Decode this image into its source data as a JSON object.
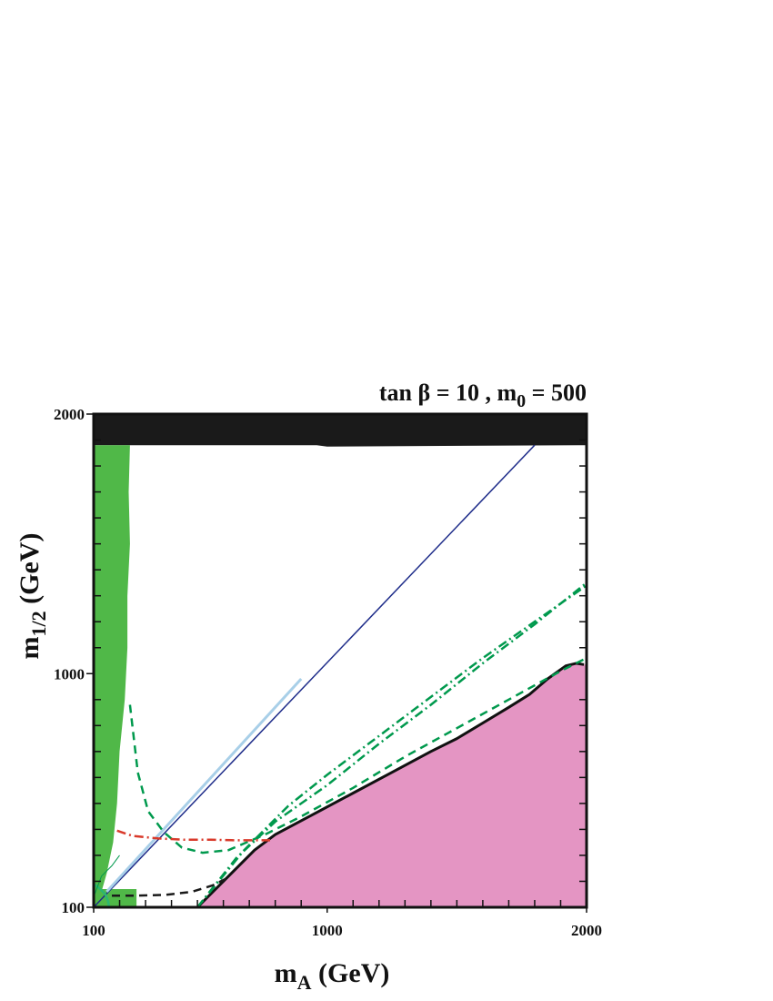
{
  "chart_data": {
    "type": "line",
    "title": "tan β = 10 , m",
    "title_sub": "0",
    "title_suffix": " = 500",
    "xlabel": "m",
    "xlabel_sub": "A",
    "xlabel_suffix": " (GeV)",
    "ylabel": "m",
    "ylabel_sub": "1/2",
    "ylabel_suffix": " (GeV)",
    "xlim": [
      100,
      2000
    ],
    "ylim": [
      100,
      2000
    ],
    "x_tick_labels": [
      {
        "value": 100,
        "label": "100"
      },
      {
        "value": 1000,
        "label": "1000"
      },
      {
        "value": 2000,
        "label": "2000"
      }
    ],
    "y_tick_labels": [
      {
        "value": 100,
        "label": "100"
      },
      {
        "value": 1000,
        "label": "1000"
      },
      {
        "value": 2000,
        "label": "2000"
      }
    ],
    "x_minor_ticks": [
      200,
      300,
      400,
      500,
      600,
      700,
      800,
      900,
      1100,
      1200,
      1300,
      1400,
      1500,
      1600,
      1700,
      1800,
      1900
    ],
    "y_minor_ticks": [
      200,
      300,
      400,
      500,
      600,
      700,
      800,
      900,
      1100,
      1200,
      1300,
      1400,
      1500,
      1600,
      1700,
      1800,
      1900
    ],
    "grid": false,
    "regions": [
      {
        "name": "black-region",
        "color": "#1a1a1a",
        "points": [
          [
            100,
            2000
          ],
          [
            2000,
            2000
          ],
          [
            2000,
            1880
          ],
          [
            1000,
            1875
          ],
          [
            960,
            1880
          ],
          [
            100,
            1880
          ]
        ]
      },
      {
        "name": "pink-region",
        "color": "#e495c3",
        "points": [
          [
            500,
            100
          ],
          [
            620,
            220
          ],
          [
            720,
            320
          ],
          [
            800,
            380
          ],
          [
            950,
            460
          ],
          [
            1100,
            540
          ],
          [
            1250,
            620
          ],
          [
            1400,
            700
          ],
          [
            1500,
            750
          ],
          [
            1600,
            810
          ],
          [
            1700,
            870
          ],
          [
            1780,
            920
          ],
          [
            1850,
            980
          ],
          [
            1920,
            1030
          ],
          [
            1960,
            1040
          ],
          [
            1990,
            1035
          ],
          [
            2000,
            1035
          ],
          [
            2000,
            100
          ]
        ]
      },
      {
        "name": "green-strip-region",
        "color": "#50b848",
        "points": [
          [
            100,
            1880
          ],
          [
            240,
            1880
          ],
          [
            235,
            1700
          ],
          [
            240,
            1500
          ],
          [
            230,
            1300
          ],
          [
            230,
            1100
          ],
          [
            220,
            900
          ],
          [
            200,
            700
          ],
          [
            190,
            500
          ],
          [
            175,
            350
          ],
          [
            150,
            230
          ],
          [
            130,
            160
          ],
          [
            100,
            130
          ]
        ]
      },
      {
        "name": "green-corner-region",
        "color": "#50b848",
        "points": [
          [
            100,
            100
          ],
          [
            265,
            100
          ],
          [
            265,
            170
          ],
          [
            100,
            170
          ]
        ]
      }
    ],
    "series": [
      {
        "color": "#1f2d8a",
        "style": "solid",
        "width": 1.5,
        "x": [
          100,
          1800
        ],
        "y": [
          100,
          1880
        ]
      },
      {
        "color": "#a8cfe8",
        "style": "solid",
        "width": 3,
        "x": [
          150,
          900
        ],
        "y": [
          160,
          980
        ]
      },
      {
        "color": "#111111",
        "style": "solid",
        "width": 3,
        "x": [
          500,
          620,
          720,
          800,
          950,
          1100,
          1250,
          1400,
          1500,
          1600,
          1700,
          1780,
          1850,
          1920,
          1960,
          1990
        ],
        "y": [
          100,
          220,
          320,
          380,
          460,
          540,
          620,
          700,
          750,
          810,
          870,
          920,
          980,
          1030,
          1040,
          1035
        ]
      },
      {
        "color": "#00994d",
        "style": "dashed",
        "width": 2.5,
        "x": [
          240,
          270,
          310,
          370,
          440,
          520,
          620,
          760,
          900,
          1100,
          1300,
          1500,
          1700,
          1900,
          2000
        ],
        "y": [
          880,
          620,
          470,
          390,
          330,
          310,
          320,
          380,
          450,
          560,
          680,
          790,
          900,
          1010,
          1060
        ]
      },
      {
        "color": "#00994d",
        "style": "dashdot",
        "width": 2.5,
        "x": [
          500,
          650,
          800,
          1000,
          1200,
          1400,
          1600,
          1800,
          2000
        ],
        "y": [
          100,
          290,
          430,
          570,
          730,
          880,
          1040,
          1190,
          1350
        ]
      },
      {
        "color": "#00994d",
        "style": "dashdot",
        "width": 2.5,
        "x": [
          500,
          680,
          850,
          1000,
          1200,
          1400,
          1600,
          1800,
          2000
        ],
        "y": [
          100,
          320,
          490,
          610,
          760,
          910,
          1060,
          1200,
          1340
        ]
      },
      {
        "color": "#d93a2b",
        "style": "dashdot",
        "width": 2.5,
        "x": [
          190,
          250,
          350,
          450,
          550,
          650,
          780
        ],
        "y": [
          395,
          375,
          365,
          360,
          360,
          358,
          358
        ]
      },
      {
        "color": "#1a1a1a",
        "style": "dashed",
        "width": 2.5,
        "x": [
          170,
          260,
          380,
          480,
          560,
          610
        ],
        "y": [
          145,
          145,
          148,
          160,
          185,
          210
        ]
      },
      {
        "color": "#2bb673",
        "style": "solid",
        "width": 2.5,
        "x": [
          100,
          120,
          145,
          155,
          160
        ],
        "y": [
          190,
          175,
          150,
          125,
          100
        ]
      },
      {
        "color": "#00994d",
        "style": "solid",
        "width": 1,
        "x": [
          100,
          130,
          170,
          200
        ],
        "y": [
          140,
          220,
          260,
          300
        ]
      }
    ]
  }
}
